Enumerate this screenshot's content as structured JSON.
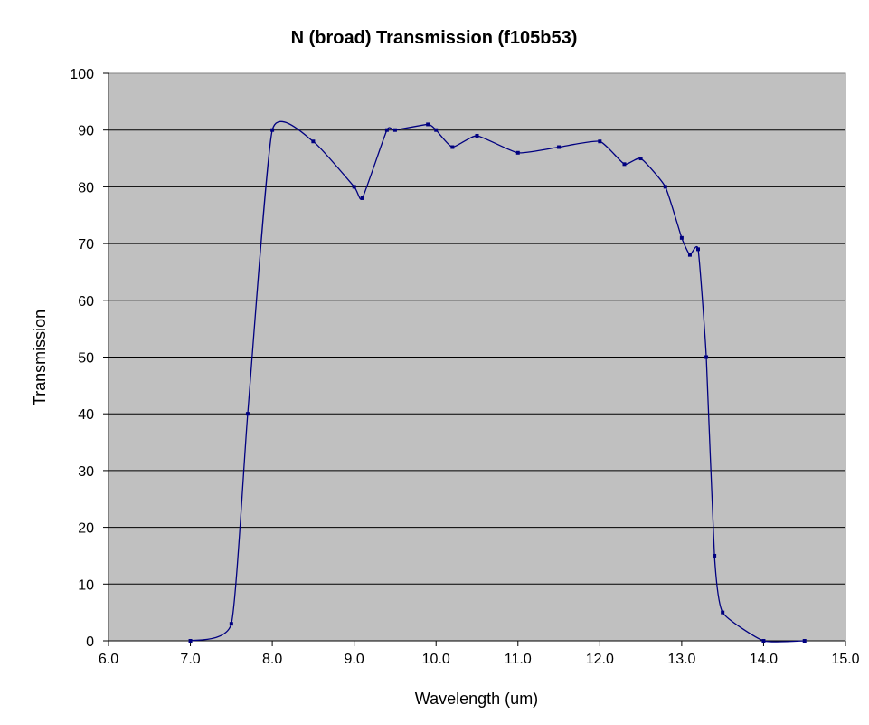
{
  "chart_data": {
    "type": "line",
    "title": "N (broad) Transmission (f105b53)",
    "xlabel": "Wavelength (um)",
    "ylabel": "Transmission",
    "xlim": [
      6.0,
      15.0
    ],
    "ylim": [
      0,
      100
    ],
    "xticks": [
      "6.0",
      "7.0",
      "8.0",
      "9.0",
      "10.0",
      "11.0",
      "12.0",
      "13.0",
      "14.0",
      "15.0"
    ],
    "yticks": [
      "0",
      "10",
      "20",
      "30",
      "40",
      "50",
      "60",
      "70",
      "80",
      "90",
      "100"
    ],
    "grid": "horizontal",
    "legend": "none",
    "plot_background": "#c0c0c0",
    "line_color": "#000080",
    "series": [
      {
        "x": [
          7.0,
          7.5,
          7.7,
          8.0,
          8.5,
          9.0,
          9.1,
          9.4,
          9.5,
          9.9,
          10.0,
          10.2,
          10.5,
          11.0,
          11.5,
          12.0,
          12.3,
          12.5,
          12.8,
          13.0,
          13.1,
          13.2,
          13.3,
          13.4,
          13.5,
          14.0,
          14.5
        ],
        "y": [
          0,
          3,
          40,
          90,
          88,
          80,
          78,
          90,
          90,
          91,
          90,
          87,
          89,
          86,
          87,
          88,
          84,
          85,
          80,
          71,
          68,
          69,
          50,
          15,
          5,
          0,
          0
        ]
      }
    ]
  }
}
